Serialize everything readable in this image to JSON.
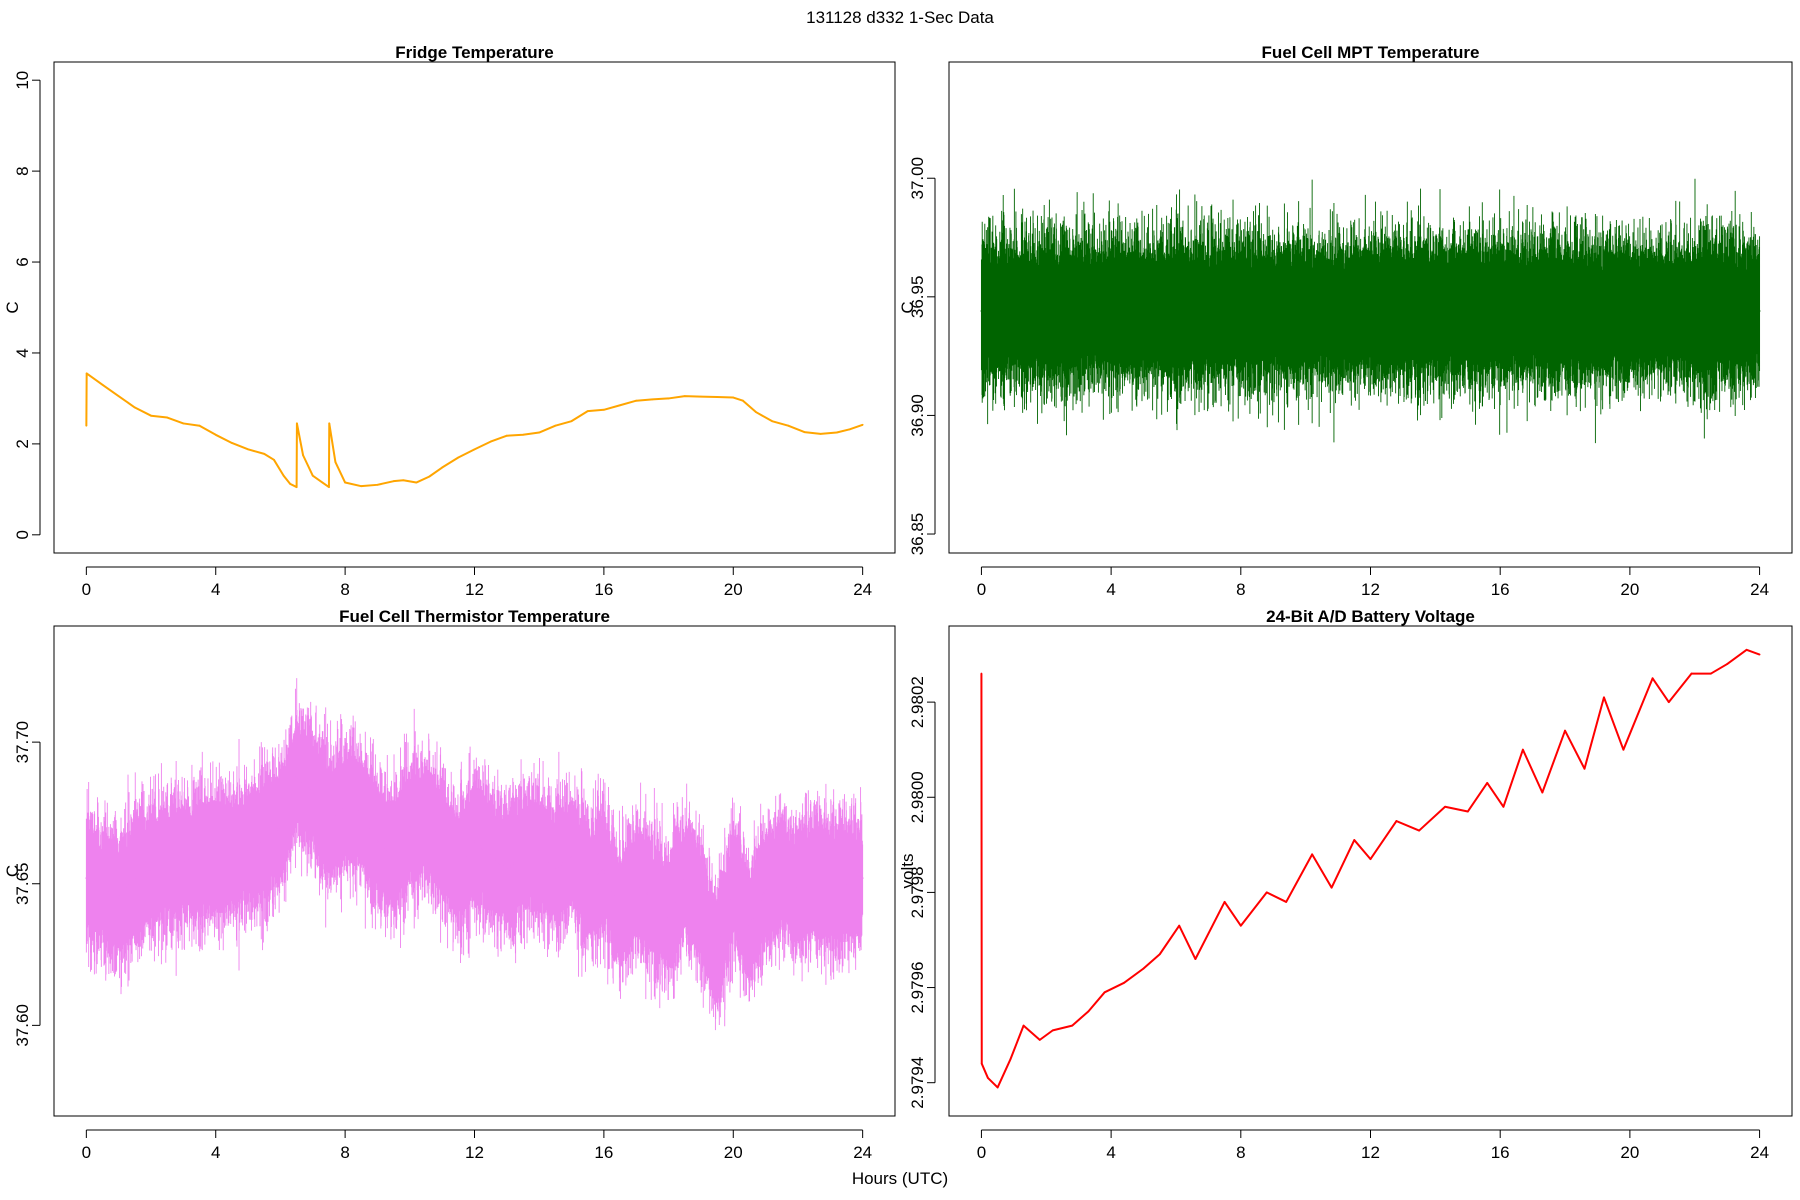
{
  "figure": {
    "title": "131128   d332   1-Sec Data",
    "shared_xlabel": "Hours (UTC)"
  },
  "chart_data": [
    {
      "type": "line",
      "title": "Fridge Temperature",
      "xlabel": "",
      "ylabel": "C",
      "xlim": [
        -1,
        25
      ],
      "ylim": [
        -0.4,
        10.4
      ],
      "xticks": [
        0,
        4,
        8,
        12,
        16,
        20,
        24
      ],
      "xtick_labels": [
        "0",
        "4",
        "8",
        "12",
        "16",
        "20",
        "24"
      ],
      "yticks": [
        0,
        2,
        4,
        6,
        8,
        10
      ],
      "ytick_labels": [
        "0",
        "2",
        "4",
        "6",
        "8",
        "10"
      ],
      "color": "#FFA500",
      "noise": 0,
      "series": [
        {
          "x": [
            0,
            0.01,
            0.5,
            1,
            1.5,
            2,
            2.5,
            3,
            3.5,
            4,
            4.5,
            5,
            5.5,
            5.8,
            6.1,
            6.3,
            6.5,
            6.51,
            6.7,
            7.0,
            7.3,
            7.5,
            7.51,
            7.7,
            8,
            8.5,
            9,
            9.5,
            9.8,
            10.2,
            10.6,
            11,
            11.5,
            12,
            12.5,
            13,
            13.5,
            14,
            14.5,
            15,
            15.5,
            16,
            16.5,
            17,
            17.5,
            18,
            18.5,
            19,
            19.5,
            20,
            20.3,
            20.7,
            21.2,
            21.7,
            22.2,
            22.7,
            23.2,
            23.6,
            24
          ],
          "values": [
            2.4,
            3.55,
            3.3,
            3.05,
            2.8,
            2.62,
            2.58,
            2.45,
            2.4,
            2.2,
            2.02,
            1.88,
            1.78,
            1.65,
            1.3,
            1.12,
            1.05,
            2.45,
            1.75,
            1.3,
            1.15,
            1.05,
            2.45,
            1.6,
            1.15,
            1.07,
            1.1,
            1.18,
            1.2,
            1.15,
            1.28,
            1.48,
            1.7,
            1.88,
            2.05,
            2.18,
            2.2,
            2.25,
            2.4,
            2.5,
            2.72,
            2.75,
            2.85,
            2.95,
            2.98,
            3.0,
            3.05,
            3.04,
            3.03,
            3.02,
            2.95,
            2.7,
            2.5,
            2.4,
            2.26,
            2.22,
            2.25,
            2.32,
            2.42
          ]
        }
      ]
    },
    {
      "type": "line",
      "title": "Fuel Cell MPT Temperature",
      "xlabel": "",
      "ylabel": "C",
      "xlim": [
        -1,
        25
      ],
      "ylim": [
        36.842,
        37.049
      ],
      "xticks": [
        0,
        4,
        8,
        12,
        16,
        20,
        24
      ],
      "xtick_labels": [
        "0",
        "4",
        "8",
        "12",
        "16",
        "20",
        "24"
      ],
      "yticks": [
        36.85,
        36.9,
        36.95,
        37.0
      ],
      "ytick_labels": [
        "36.85",
        "36.90",
        "36.95",
        "37.00"
      ],
      "color": "#006400",
      "noise": 0.045,
      "series": [
        {
          "x": [
            0,
            2,
            4,
            6,
            8,
            10,
            12,
            14,
            16,
            18,
            20,
            22,
            24
          ],
          "values": [
            36.944,
            36.944,
            36.944,
            36.944,
            36.944,
            36.944,
            36.944,
            36.944,
            36.944,
            36.944,
            36.944,
            36.944,
            36.944
          ]
        }
      ]
    },
    {
      "type": "line",
      "title": "Fuel Cell Thermistor Temperature",
      "xlabel": "",
      "ylabel": "C",
      "xlim": [
        -1,
        25
      ],
      "ylim": [
        37.568,
        37.741
      ],
      "xticks": [
        0,
        4,
        8,
        12,
        16,
        20,
        24
      ],
      "xtick_labels": [
        "0",
        "4",
        "8",
        "12",
        "16",
        "20",
        "24"
      ],
      "yticks": [
        37.6,
        37.65,
        37.7
      ],
      "ytick_labels": [
        "37.60",
        "37.65",
        "37.70"
      ],
      "color": "#EE82EE",
      "noise": 0.035,
      "series": [
        {
          "x": [
            0,
            0.5,
            1,
            1.5,
            2,
            3,
            4,
            5,
            5.5,
            6,
            6.5,
            7,
            7.5,
            8,
            8.5,
            9,
            9.5,
            10,
            10.5,
            11,
            11.5,
            12,
            12.5,
            13,
            13.5,
            14,
            14.5,
            15,
            15.5,
            16,
            16.5,
            17,
            17.5,
            18,
            18.5,
            19,
            19.5,
            20,
            20.5,
            21,
            21.5,
            22,
            22.5,
            23,
            23.5,
            24
          ],
          "values": [
            37.652,
            37.648,
            37.645,
            37.652,
            37.655,
            37.658,
            37.66,
            37.662,
            37.665,
            37.67,
            37.688,
            37.682,
            37.672,
            37.678,
            37.675,
            37.665,
            37.66,
            37.67,
            37.672,
            37.665,
            37.655,
            37.665,
            37.66,
            37.655,
            37.66,
            37.662,
            37.655,
            37.66,
            37.65,
            37.655,
            37.64,
            37.65,
            37.645,
            37.638,
            37.652,
            37.642,
            37.625,
            37.65,
            37.635,
            37.648,
            37.652,
            37.648,
            37.652,
            37.648,
            37.65,
            37.652
          ]
        }
      ]
    },
    {
      "type": "line",
      "title": "24-Bit A/D Battery Voltage",
      "xlabel": "",
      "ylabel": "volts",
      "xlim": [
        -1,
        25
      ],
      "ylim": [
        2.97933,
        2.98036
      ],
      "xticks": [
        0,
        4,
        8,
        12,
        16,
        20,
        24
      ],
      "xtick_labels": [
        "0",
        "4",
        "8",
        "12",
        "16",
        "20",
        "24"
      ],
      "yticks": [
        2.9794,
        2.9796,
        2.9798,
        2.98,
        2.9802
      ],
      "ytick_labels": [
        "2.9794",
        "2.9796",
        "2.9798",
        "2.9800",
        "2.9802"
      ],
      "color": "#FF0000",
      "noise": 0,
      "series": [
        {
          "x": [
            0,
            0.01,
            0.2,
            0.5,
            0.9,
            1.3,
            1.8,
            2.2,
            2.8,
            3.3,
            3.8,
            4.4,
            5.0,
            5.5,
            6.1,
            6.6,
            7.5,
            8.0,
            8.8,
            9.4,
            10.2,
            10.8,
            11.5,
            12.0,
            12.8,
            13.5,
            14.3,
            15.0,
            15.6,
            16.1,
            16.7,
            17.3,
            18.0,
            18.6,
            19.2,
            19.8,
            20.7,
            21.2,
            21.9,
            22.5,
            23.0,
            23.6,
            24
          ],
          "values": [
            2.98026,
            2.97944,
            2.97941,
            2.97939,
            2.97945,
            2.97952,
            2.97949,
            2.97951,
            2.97952,
            2.97955,
            2.97959,
            2.97961,
            2.97964,
            2.97967,
            2.97973,
            2.97966,
            2.97978,
            2.97973,
            2.9798,
            2.97978,
            2.97988,
            2.97981,
            2.97991,
            2.97987,
            2.97995,
            2.97993,
            2.97998,
            2.97997,
            2.98003,
            2.97998,
            2.9801,
            2.98001,
            2.98014,
            2.98006,
            2.98021,
            2.9801,
            2.98025,
            2.9802,
            2.98026,
            2.98026,
            2.98028,
            2.98031,
            2.9803
          ]
        }
      ]
    }
  ]
}
